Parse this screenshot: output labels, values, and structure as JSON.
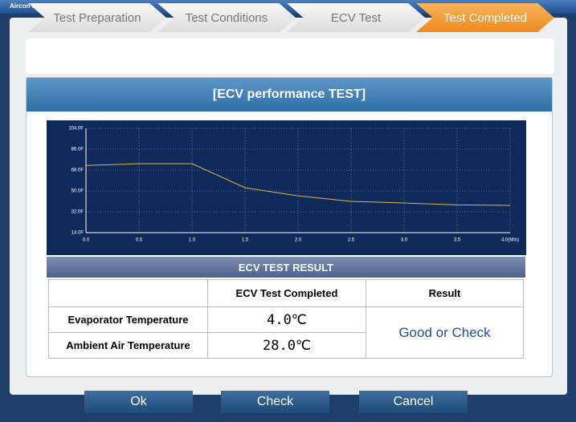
{
  "window": {
    "title": "Aircon compressor Test(ECV Type)"
  },
  "steps": [
    "Test Preparation",
    "Test Conditions",
    "ECV Test",
    "Test Completed"
  ],
  "panel_title": "[ECV performance TEST]",
  "chart_data": {
    "type": "line",
    "x": [
      0,
      0.5,
      1.0,
      1.5,
      2.0,
      2.5,
      3.0,
      3.5,
      4.0
    ],
    "values": [
      72,
      73.5,
      73.5,
      52.8,
      45.8,
      41,
      39.6,
      38,
      37.5
    ],
    "color": "#d8b84a",
    "xlim": [
      0,
      4
    ],
    "ylim": [
      14,
      104
    ],
    "xticks": [
      {
        "value": 0,
        "label": "0.0"
      },
      {
        "value": 0.5,
        "label": "0.5"
      },
      {
        "value": 1,
        "label": "1.0"
      },
      {
        "value": 1.5,
        "label": "1.5"
      },
      {
        "value": 2,
        "label": "2.0"
      },
      {
        "value": 2.5,
        "label": "2.5"
      },
      {
        "value": 3,
        "label": "3.0"
      },
      {
        "value": 3.5,
        "label": "3.5"
      },
      {
        "value": 4,
        "label": "4.0(Min)"
      }
    ],
    "yticks": [
      {
        "value": 14,
        "label": "14.0F"
      },
      {
        "value": 32,
        "label": "32.0F"
      },
      {
        "value": 50,
        "label": "50.0F"
      },
      {
        "value": 68,
        "label": "68.0F"
      },
      {
        "value": 86,
        "label": "86.0F"
      },
      {
        "value": 104,
        "label": "104.0F"
      }
    ],
    "grid": true
  },
  "result_table": {
    "title": "ECV TEST RESULT",
    "header": [
      "ECV Test Completed",
      "Result"
    ],
    "rows": [
      [
        "Evaporator Temperature",
        "4.0℃"
      ],
      [
        "Ambient Air Temperature",
        "28.0℃"
      ]
    ],
    "result": "Good or Check"
  },
  "buttons": [
    "Ok",
    "Check",
    "Cancel"
  ]
}
